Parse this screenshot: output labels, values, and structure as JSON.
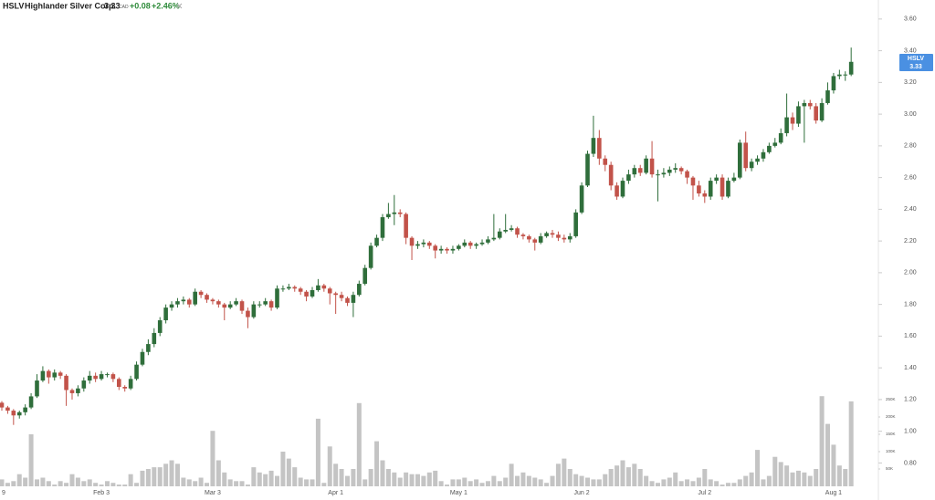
{
  "header": {
    "symbol": "HSLV",
    "name": "Highlander Silver Corp.",
    "price": "3.33",
    "currency": "CAD",
    "change": "+0.08",
    "change_pct": "+2.46%"
  },
  "chart_data": {
    "type": "candlestick",
    "categories": [
      "9",
      null,
      null,
      null,
      null,
      null,
      null,
      null,
      null,
      null,
      null,
      null,
      null,
      null,
      null,
      null,
      null,
      "Feb 3",
      null,
      null,
      null,
      null,
      null,
      null,
      null,
      null,
      null,
      null,
      null,
      null,
      null,
      null,
      null,
      null,
      null,
      null,
      "Mar 3",
      null,
      null,
      null,
      null,
      null,
      null,
      null,
      null,
      null,
      null,
      null,
      null,
      null,
      null,
      null,
      null,
      null,
      null,
      null,
      null,
      "Apr 1",
      null,
      null,
      null,
      null,
      null,
      null,
      null,
      null,
      null,
      null,
      null,
      null,
      null,
      null,
      null,
      null,
      null,
      null,
      null,
      null,
      "May 1",
      null,
      null,
      null,
      null,
      null,
      null,
      null,
      null,
      null,
      null,
      null,
      null,
      null,
      null,
      null,
      null,
      null,
      null,
      null,
      null,
      "Jun 2",
      null,
      null,
      null,
      null,
      null,
      null,
      null,
      null,
      null,
      null,
      null,
      null,
      null,
      null,
      null,
      null,
      null,
      null,
      null,
      null,
      "Jul 2",
      null,
      null,
      null,
      null,
      null,
      null,
      null,
      null,
      null,
      null,
      null,
      null,
      null,
      null,
      null,
      null,
      null,
      null,
      null,
      null,
      null,
      "Aug 1",
      null,
      null,
      null
    ],
    "ohlc": {
      "open": [
        1.18,
        1.15,
        1.13,
        1.1,
        1.12,
        1.15,
        1.22,
        1.32,
        1.38,
        1.34,
        1.37,
        1.35,
        1.26,
        1.24,
        1.27,
        1.32,
        1.35,
        1.33,
        1.36,
        1.36,
        1.33,
        1.28,
        1.27,
        1.33,
        1.42,
        1.5,
        1.55,
        1.62,
        1.7,
        1.78,
        1.8,
        1.82,
        1.83,
        1.8,
        1.88,
        1.86,
        1.83,
        1.82,
        1.8,
        1.78,
        1.8,
        1.82,
        1.76,
        1.72,
        1.8,
        1.8,
        1.82,
        1.78,
        1.9,
        1.9,
        1.91,
        1.9,
        1.88,
        1.85,
        1.89,
        1.92,
        1.9,
        1.87,
        1.86,
        1.84,
        1.81,
        1.86,
        1.93,
        2.03,
        2.17,
        2.22,
        2.35,
        2.37,
        2.38,
        2.37,
        2.22,
        2.17,
        2.18,
        2.19,
        2.17,
        2.14,
        2.15,
        2.14,
        2.15,
        2.17,
        2.19,
        2.17,
        2.18,
        2.19,
        2.21,
        2.22,
        2.26,
        2.27,
        2.28,
        2.24,
        2.23,
        2.21,
        2.19,
        2.23,
        2.25,
        2.24,
        2.22,
        2.21,
        2.23,
        2.38,
        2.55,
        2.75,
        2.85,
        2.72,
        2.68,
        2.55,
        2.48,
        2.58,
        2.62,
        2.66,
        2.63,
        2.72,
        2.62,
        2.62,
        2.63,
        2.65,
        2.66,
        2.64,
        2.6,
        2.55,
        2.5,
        2.48,
        2.58,
        2.6,
        2.48,
        2.58,
        2.6,
        2.82,
        2.66,
        2.7,
        2.72,
        2.76,
        2.8,
        2.82,
        2.88,
        2.98,
        2.94,
        3.05,
        3.07,
        3.05,
        2.96,
        3.07,
        3.15,
        3.24,
        3.25,
        3.25
      ],
      "high": [
        1.19,
        1.16,
        1.14,
        1.13,
        1.17,
        1.24,
        1.36,
        1.41,
        1.39,
        1.39,
        1.38,
        1.36,
        1.27,
        1.29,
        1.34,
        1.38,
        1.37,
        1.38,
        1.37,
        1.37,
        1.34,
        1.29,
        1.35,
        1.44,
        1.52,
        1.58,
        1.65,
        1.72,
        1.8,
        1.82,
        1.84,
        1.85,
        1.84,
        1.9,
        1.89,
        1.87,
        1.84,
        1.83,
        1.81,
        1.82,
        1.84,
        1.83,
        1.78,
        1.82,
        1.82,
        1.84,
        1.83,
        1.92,
        1.92,
        1.93,
        1.92,
        1.91,
        1.89,
        1.91,
        1.96,
        1.93,
        1.91,
        1.88,
        1.88,
        1.85,
        1.88,
        1.95,
        2.05,
        2.19,
        2.24,
        2.37,
        2.44,
        2.49,
        2.4,
        2.38,
        2.23,
        2.2,
        2.21,
        2.2,
        2.18,
        2.17,
        2.16,
        2.17,
        2.18,
        2.21,
        2.2,
        2.19,
        2.21,
        2.23,
        2.37,
        2.28,
        2.37,
        2.3,
        2.29,
        2.25,
        2.24,
        2.22,
        2.25,
        2.26,
        2.27,
        2.26,
        2.24,
        2.25,
        2.4,
        2.57,
        2.77,
        2.99,
        2.9,
        2.74,
        2.7,
        2.57,
        2.6,
        2.65,
        2.68,
        2.68,
        2.74,
        2.83,
        2.65,
        2.66,
        2.67,
        2.69,
        2.67,
        2.65,
        2.61,
        2.58,
        2.52,
        2.6,
        2.62,
        2.62,
        2.6,
        2.63,
        2.84,
        2.89,
        2.72,
        2.74,
        2.78,
        2.82,
        2.85,
        2.91,
        3.13,
        3.01,
        3.08,
        3.09,
        3.09,
        3.07,
        3.1,
        3.2,
        3.26,
        3.28,
        3.27,
        3.42
      ],
      "low": [
        1.13,
        1.11,
        1.04,
        1.08,
        1.1,
        1.14,
        1.21,
        1.31,
        1.3,
        1.32,
        1.33,
        1.16,
        1.2,
        1.22,
        1.25,
        1.3,
        1.31,
        1.32,
        1.34,
        1.31,
        1.26,
        1.25,
        1.26,
        1.32,
        1.41,
        1.48,
        1.53,
        1.6,
        1.68,
        1.76,
        1.78,
        1.8,
        1.78,
        1.79,
        1.84,
        1.81,
        1.8,
        1.78,
        1.7,
        1.77,
        1.79,
        1.74,
        1.65,
        1.71,
        1.78,
        1.79,
        1.76,
        1.77,
        1.88,
        1.89,
        1.88,
        1.86,
        1.82,
        1.84,
        1.88,
        1.88,
        1.8,
        1.74,
        1.82,
        1.79,
        1.72,
        1.85,
        1.92,
        2.02,
        2.16,
        2.2,
        2.34,
        2.3,
        2.35,
        2.18,
        2.08,
        2.15,
        2.16,
        2.15,
        2.09,
        2.12,
        2.12,
        2.12,
        2.14,
        2.16,
        2.15,
        2.15,
        2.17,
        2.18,
        2.2,
        2.21,
        2.25,
        2.26,
        2.22,
        2.21,
        2.19,
        2.14,
        2.18,
        2.22,
        2.22,
        2.2,
        2.19,
        2.19,
        2.22,
        2.37,
        2.54,
        2.73,
        2.68,
        2.64,
        2.52,
        2.46,
        2.47,
        2.56,
        2.6,
        2.61,
        2.62,
        2.6,
        2.45,
        2.6,
        2.61,
        2.63,
        2.62,
        2.56,
        2.46,
        2.48,
        2.44,
        2.46,
        2.56,
        2.46,
        2.47,
        2.57,
        2.59,
        2.64,
        2.64,
        2.68,
        2.7,
        2.75,
        2.79,
        2.81,
        2.86,
        2.9,
        2.92,
        2.82,
        3.03,
        2.94,
        2.95,
        3.06,
        3.13,
        3.22,
        3.21,
        3.24
      ],
      "close": [
        1.15,
        1.13,
        1.1,
        1.12,
        1.15,
        1.22,
        1.32,
        1.38,
        1.34,
        1.37,
        1.35,
        1.26,
        1.24,
        1.27,
        1.32,
        1.35,
        1.33,
        1.36,
        1.36,
        1.33,
        1.28,
        1.27,
        1.33,
        1.42,
        1.5,
        1.55,
        1.62,
        1.7,
        1.78,
        1.8,
        1.82,
        1.83,
        1.8,
        1.88,
        1.86,
        1.83,
        1.82,
        1.8,
        1.78,
        1.8,
        1.82,
        1.76,
        1.72,
        1.8,
        1.8,
        1.82,
        1.78,
        1.9,
        1.9,
        1.91,
        1.9,
        1.88,
        1.85,
        1.89,
        1.92,
        1.9,
        1.87,
        1.86,
        1.84,
        1.81,
        1.86,
        1.93,
        2.03,
        2.17,
        2.22,
        2.35,
        2.37,
        2.38,
        2.37,
        2.22,
        2.17,
        2.18,
        2.19,
        2.17,
        2.14,
        2.15,
        2.14,
        2.15,
        2.17,
        2.19,
        2.17,
        2.18,
        2.19,
        2.21,
        2.22,
        2.26,
        2.27,
        2.28,
        2.24,
        2.23,
        2.21,
        2.19,
        2.23,
        2.25,
        2.24,
        2.22,
        2.21,
        2.23,
        2.38,
        2.55,
        2.75,
        2.85,
        2.72,
        2.68,
        2.55,
        2.48,
        2.58,
        2.62,
        2.66,
        2.63,
        2.72,
        2.62,
        2.62,
        2.63,
        2.65,
        2.66,
        2.64,
        2.6,
        2.55,
        2.5,
        2.48,
        2.58,
        2.6,
        2.48,
        2.58,
        2.6,
        2.82,
        2.66,
        2.7,
        2.72,
        2.76,
        2.8,
        2.82,
        2.88,
        2.98,
        2.94,
        3.05,
        3.07,
        3.05,
        2.96,
        3.07,
        3.15,
        3.24,
        3.25,
        3.25,
        3.33
      ],
      "up_color": "#2f6e3b",
      "down_color": "#c2534a"
    },
    "volume": {
      "axis": "y2",
      "color": "#c4c4c4",
      "values": [
        20000,
        10000,
        15000,
        35000,
        25000,
        150000,
        20000,
        25000,
        15000,
        5000,
        15000,
        10000,
        35000,
        25000,
        15000,
        20000,
        10000,
        5000,
        15000,
        10000,
        5000,
        5000,
        35000,
        10000,
        45000,
        50000,
        55000,
        55000,
        65000,
        75000,
        65000,
        25000,
        20000,
        15000,
        25000,
        10000,
        160000,
        75000,
        40000,
        20000,
        15000,
        15000,
        5000,
        55000,
        40000,
        35000,
        45000,
        30000,
        100000,
        80000,
        55000,
        25000,
        20000,
        20000,
        195000,
        10000,
        115000,
        65000,
        50000,
        30000,
        50000,
        240000,
        20000,
        50000,
        130000,
        75000,
        50000,
        40000,
        25000,
        40000,
        35000,
        35000,
        30000,
        40000,
        45000,
        15000,
        5000,
        20000,
        20000,
        25000,
        15000,
        20000,
        10000,
        15000,
        30000,
        15000,
        25000,
        65000,
        30000,
        40000,
        30000,
        25000,
        20000,
        10000,
        30000,
        65000,
        80000,
        50000,
        35000,
        30000,
        25000,
        20000,
        20000,
        35000,
        50000,
        60000,
        75000,
        55000,
        65000,
        50000,
        30000,
        15000,
        10000,
        20000,
        25000,
        40000,
        15000,
        20000,
        15000,
        25000,
        50000,
        20000,
        15000,
        5000,
        10000,
        10000,
        20000,
        30000,
        40000,
        105000,
        20000,
        30000,
        85000,
        70000,
        60000,
        40000,
        45000,
        40000,
        30000,
        50000,
        260000,
        180000,
        120000,
        60000,
        50000,
        245000
      ]
    },
    "ylim": [
      0.67,
      3.72
    ],
    "yticks": [
      {
        "value": 0.8,
        "label": "0.80"
      },
      {
        "value": 1.0,
        "label": "1.00"
      },
      {
        "value": 1.2,
        "label": "1.20"
      },
      {
        "value": 1.4,
        "label": "1.40"
      },
      {
        "value": 1.6,
        "label": "1.60"
      },
      {
        "value": 1.8,
        "label": "1.80"
      },
      {
        "value": 2.0,
        "label": "2.00"
      },
      {
        "value": 2.2,
        "label": "2.20"
      },
      {
        "value": 2.4,
        "label": "2.40"
      },
      {
        "value": 2.6,
        "label": "2.60"
      },
      {
        "value": 2.8,
        "label": "2.80"
      },
      {
        "value": 3.0,
        "label": "3.00"
      },
      {
        "value": 3.2,
        "label": "3.20"
      },
      {
        "value": 3.4,
        "label": "3.40"
      },
      {
        "value": 3.6,
        "label": "3.60"
      }
    ],
    "y2lim": [
      0,
      300000
    ],
    "y2ticks": [
      {
        "value": 50000,
        "label": "50K"
      },
      {
        "value": 100000,
        "label": "100K"
      },
      {
        "value": 150000,
        "label": "150K"
      },
      {
        "value": 200000,
        "label": "200K"
      },
      {
        "value": 250000,
        "label": "250K"
      }
    ],
    "grid": false,
    "price_tag_color": "#4a90e2"
  }
}
